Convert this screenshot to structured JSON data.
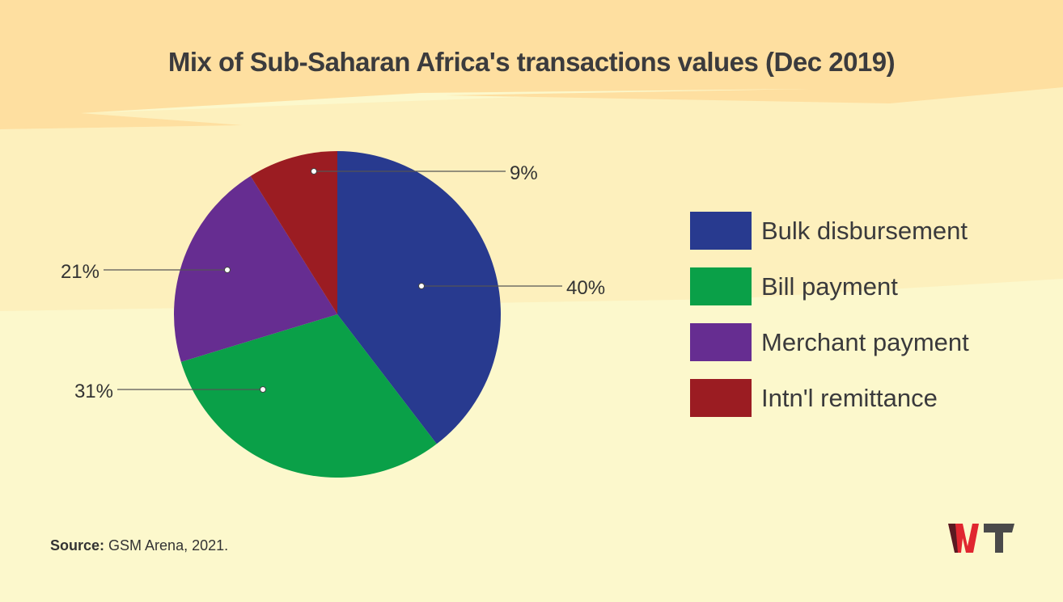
{
  "chart_data": {
    "type": "pie",
    "title": "Mix of Sub-Saharan Africa's transactions values (Dec 2019)",
    "slices": [
      {
        "label": "Bulk disbursement",
        "value": 40,
        "display": "40%",
        "color": "#283a8f"
      },
      {
        "label": "Bill payment",
        "value": 31,
        "display": "31%",
        "color": "#0aa048"
      },
      {
        "label": "Merchant payment",
        "value": 21,
        "display": "21%",
        "color": "#662d91"
      },
      {
        "label": "Intn'l remittance",
        "value": 9,
        "display": "9%",
        "color": "#9b1c22"
      }
    ],
    "start": "12 o'clock, clockwise",
    "legend_position": "right"
  },
  "source": {
    "label": "Source:",
    "text": " GSM Arena, 2021."
  },
  "logo": {
    "text": "WT",
    "colors": [
      "#5a1a22",
      "#e0262f",
      "#4a4a4a"
    ]
  },
  "background": {
    "top": "#fedfa0",
    "middle": "#fdf0bd",
    "bottom": "#fcf8cc"
  }
}
